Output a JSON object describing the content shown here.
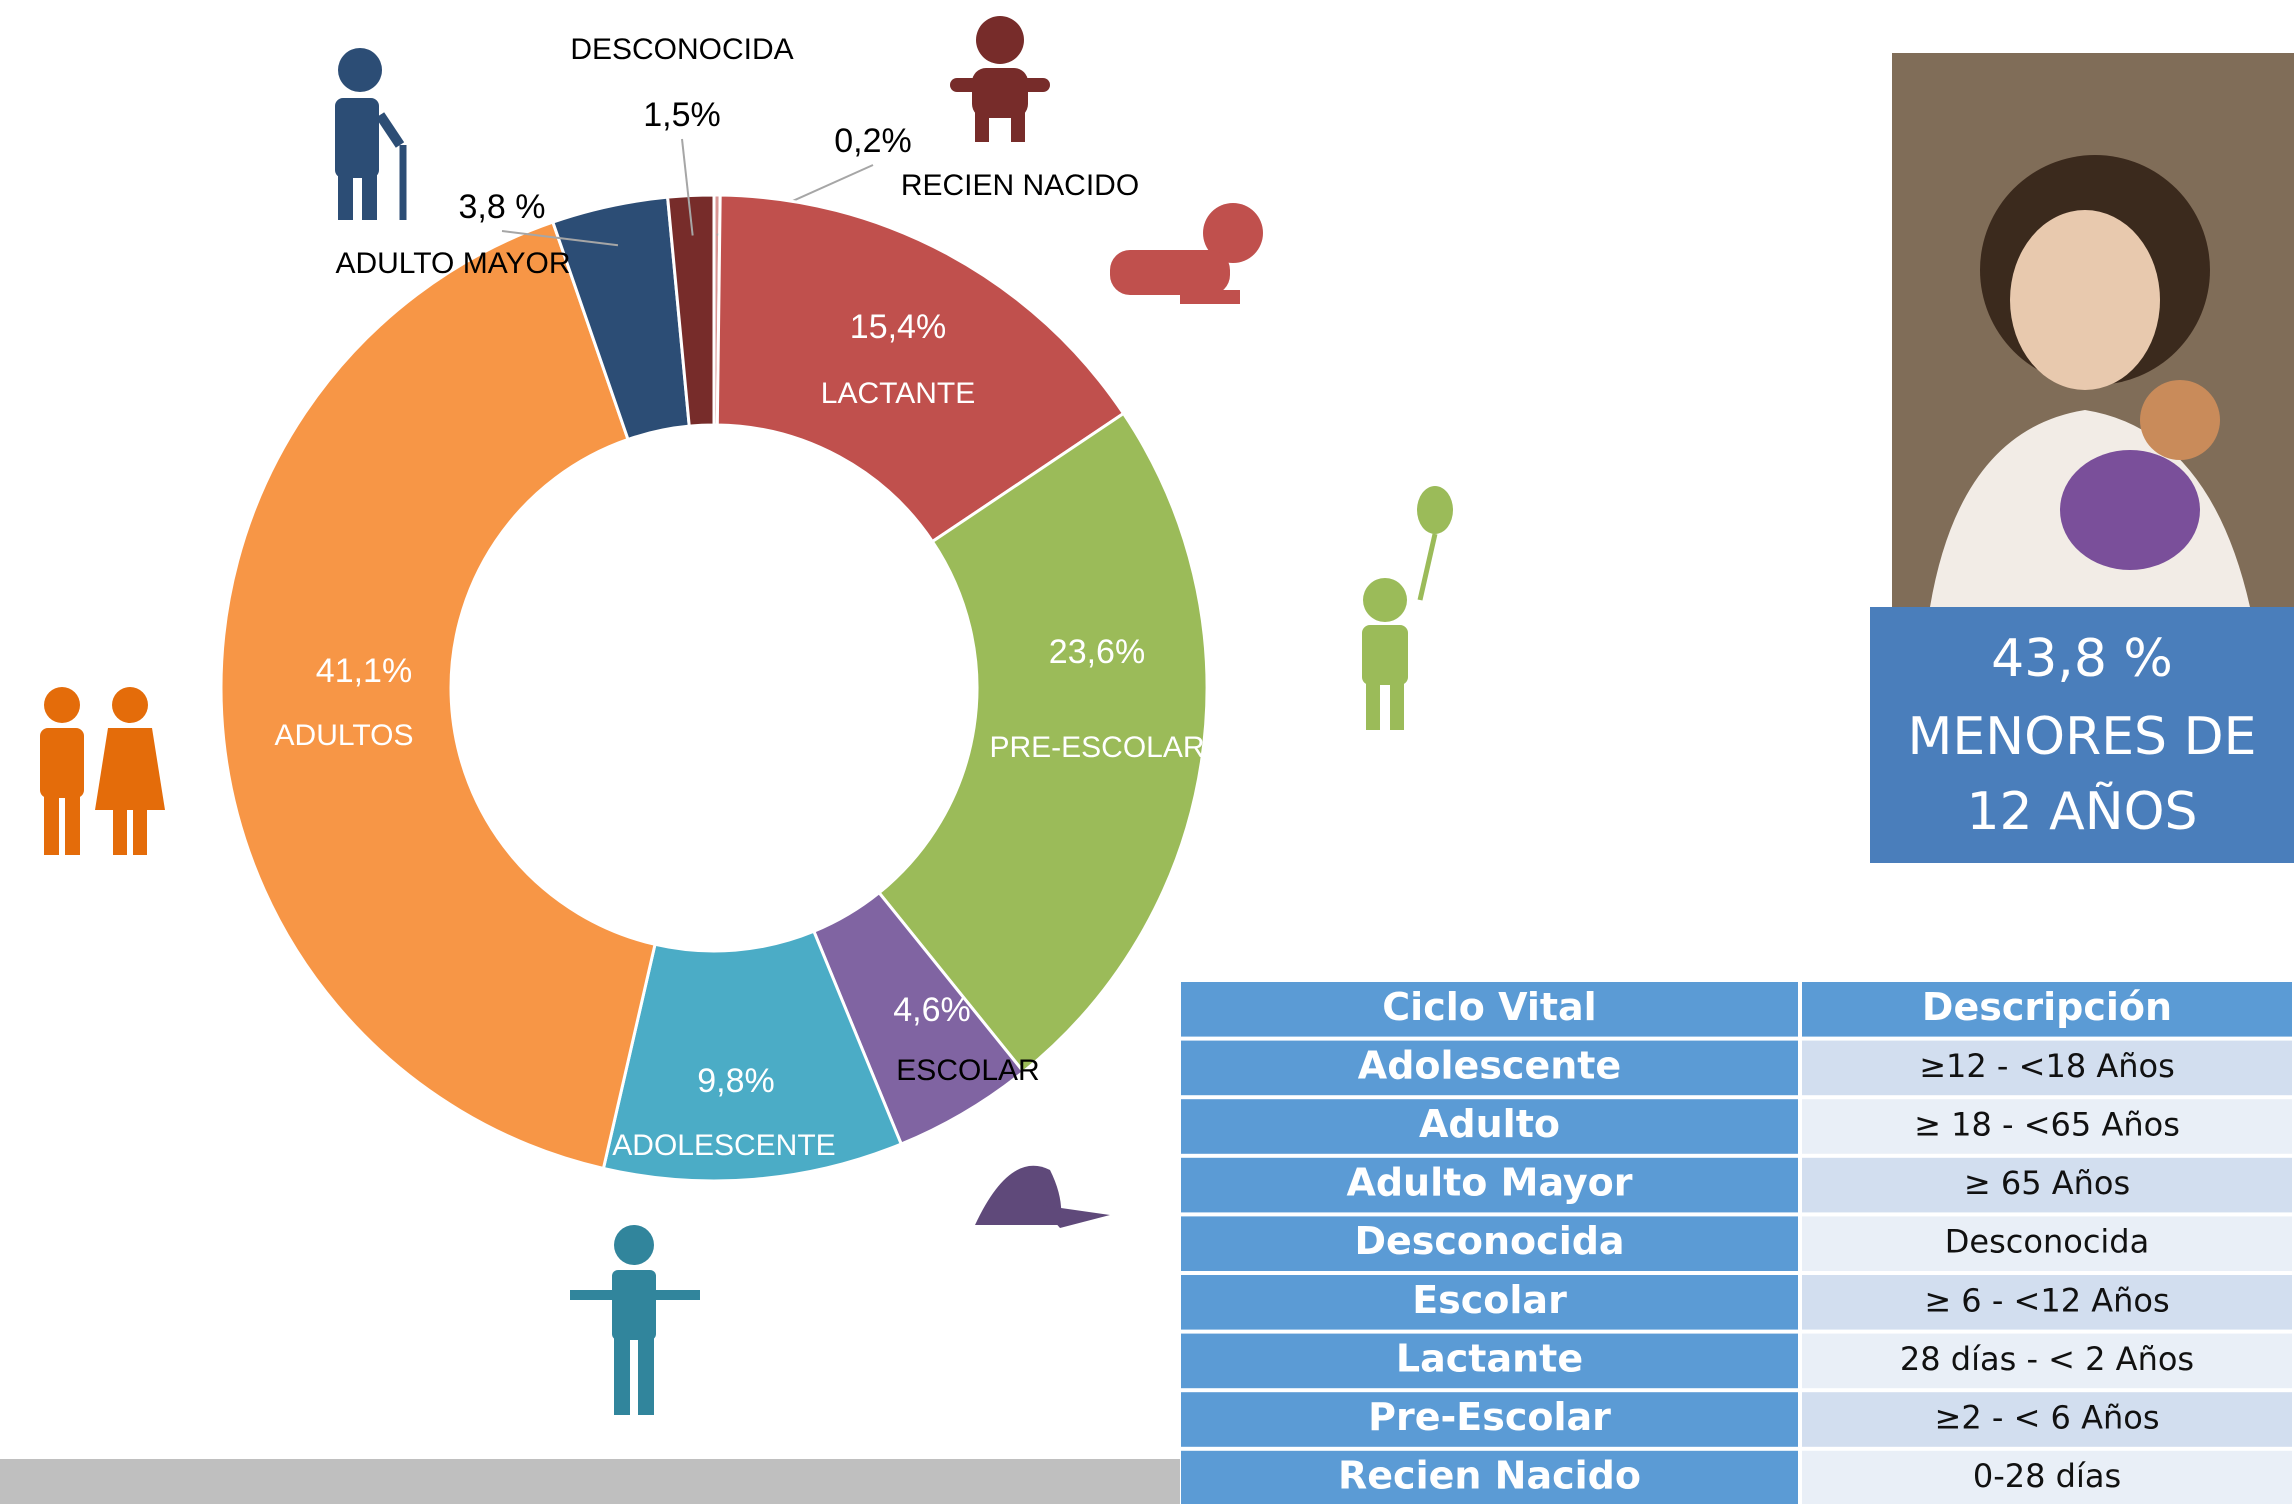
{
  "chart_data": {
    "type": "donut",
    "categories": [
      "RECIEN NACIDO",
      "LACTANTE",
      "PRE-ESCOLAR",
      "ESCOLAR",
      "ADOLESCENTE",
      "ADULTOS",
      "ADULTO MAYOR",
      "DESCONOCIDA"
    ],
    "values": [
      0.2,
      15.4,
      23.6,
      4.6,
      9.8,
      41.1,
      3.8,
      1.5
    ],
    "value_labels": [
      "0,2%",
      "15,4%",
      "23,6%",
      "4,6%",
      "9,8%",
      "41,1%",
      "3,8 %",
      "1,5%"
    ],
    "colors": [
      "#d99694",
      "#c0504d",
      "#9bbb59",
      "#8064a2",
      "#4bacc6",
      "#f79646",
      "#2c4d75",
      "#772c2a"
    ]
  },
  "callout": {
    "lines": [
      "43,8 %",
      "MENORES DE",
      "12 AÑOS"
    ]
  },
  "table": {
    "header": [
      "Ciclo Vital",
      "Descripción"
    ],
    "rows": [
      [
        "Adolescente",
        "≥12 - <18 Años"
      ],
      [
        "Adulto",
        "≥ 18 - <65  Años"
      ],
      [
        "Adulto Mayor",
        "≥ 65 Años"
      ],
      [
        "Desconocida",
        "Desconocida"
      ],
      [
        "Escolar",
        "≥ 6 - <12 Años"
      ],
      [
        "Lactante",
        "28 días - < 2 Años"
      ],
      [
        "Pre-Escolar",
        "≥2 - < 6 Años"
      ],
      [
        "Recien Nacido",
        "0-28 días"
      ]
    ]
  }
}
